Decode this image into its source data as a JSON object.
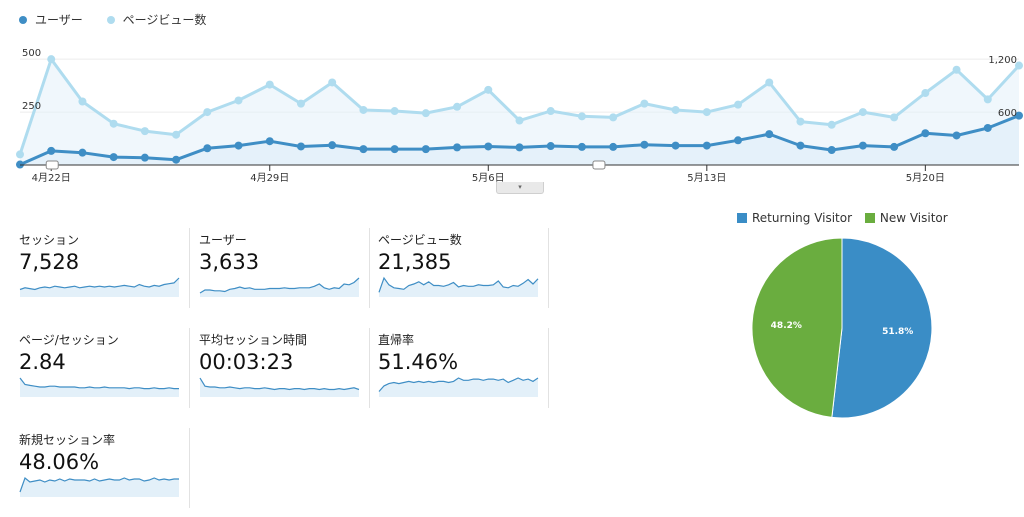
{
  "legend": [
    {
      "label": "ユーザー",
      "color": "#3f8ec5",
      "icon": "circle"
    },
    {
      "label": "ページビュー数",
      "color": "#afdcef",
      "icon": "circle"
    }
  ],
  "chart_data": {
    "type": "line",
    "series": [
      {
        "name": "ユーザー",
        "axis": "right",
        "color": "#3f8ec5",
        "values": [
          5,
          160,
          140,
          90,
          83,
          60,
          190,
          220,
          270,
          210,
          225,
          180,
          180,
          180,
          200,
          210,
          200,
          215,
          205,
          205,
          230,
          220,
          220,
          280,
          350,
          220,
          170,
          220,
          205,
          360,
          335,
          420,
          560
        ]
      },
      {
        "name": "ページビュー数",
        "axis": "left",
        "color": "#afdcef",
        "values": [
          50,
          500,
          300,
          195,
          160,
          143,
          250,
          305,
          380,
          290,
          390,
          260,
          255,
          245,
          275,
          355,
          210,
          255,
          230,
          225,
          290,
          260,
          250,
          285,
          390,
          205,
          190,
          250,
          225,
          340,
          450,
          310,
          470
        ]
      }
    ],
    "x_tick_labels": [
      "4月22日",
      "4月29日",
      "5月6日",
      "5月13日",
      "5月20日"
    ],
    "x_tick_indices": [
      1,
      8,
      15,
      22,
      29
    ],
    "y_left_ticks": [
      500,
      250
    ],
    "y_left_max": 600,
    "y_right_ticks": [
      1200,
      600
    ],
    "y_right_max": 1440,
    "area_fill": "#e3f0f9"
  },
  "collapse_handle": {
    "symbol": "▾"
  },
  "metrics": [
    {
      "label": "セッション",
      "value": "7,528",
      "spark": [
        8,
        10,
        9,
        8,
        10,
        11,
        10,
        12,
        11,
        10,
        11,
        12,
        10,
        11,
        12,
        11,
        12,
        11,
        12,
        11,
        12,
        13,
        12,
        11,
        14,
        12,
        11,
        13,
        12,
        14,
        15,
        16,
        22
      ]
    },
    {
      "label": "ユーザー",
      "value": "3,633",
      "spark": [
        4,
        8,
        8,
        7,
        7,
        6,
        9,
        10,
        12,
        10,
        11,
        9,
        9,
        9,
        10,
        10,
        10,
        11,
        10,
        10,
        11,
        11,
        11,
        13,
        16,
        11,
        9,
        11,
        10,
        16,
        15,
        18,
        24
      ]
    },
    {
      "label": "ページビュー数",
      "value": "21,385",
      "spark": [
        5,
        24,
        15,
        11,
        10,
        9,
        14,
        16,
        19,
        15,
        19,
        14,
        14,
        13,
        15,
        18,
        12,
        14,
        13,
        13,
        15,
        14,
        14,
        15,
        20,
        12,
        11,
        14,
        13,
        17,
        22,
        16,
        23
      ]
    },
    {
      "label": "ページ/セッション",
      "value": "2.84",
      "spark": [
        22,
        14,
        13,
        12,
        11,
        11,
        12,
        12,
        11,
        11,
        11,
        11,
        10,
        10,
        11,
        10,
        10,
        11,
        10,
        10,
        10,
        10,
        9,
        10,
        10,
        9,
        9,
        10,
        9,
        9,
        10,
        9,
        9
      ]
    },
    {
      "label": "平均セッション時間",
      "value": "00:03:23",
      "spark": [
        22,
        12,
        11,
        11,
        10,
        10,
        11,
        10,
        9,
        10,
        10,
        9,
        9,
        10,
        9,
        8,
        9,
        9,
        8,
        9,
        9,
        8,
        9,
        9,
        8,
        9,
        8,
        8,
        9,
        8,
        9,
        10,
        8
      ]
    },
    {
      "label": "直帰率",
      "value": "51.46%",
      "spark": [
        4,
        9,
        11,
        12,
        11,
        12,
        13,
        12,
        13,
        12,
        13,
        12,
        13,
        13,
        12,
        13,
        16,
        14,
        14,
        15,
        15,
        14,
        15,
        15,
        14,
        15,
        12,
        14,
        16,
        14,
        15,
        13,
        16
      ]
    },
    {
      "label": "新規セッション率",
      "value": "48.06%",
      "spark": [
        4,
        18,
        14,
        15,
        16,
        14,
        16,
        15,
        17,
        15,
        17,
        16,
        16,
        16,
        15,
        17,
        15,
        16,
        17,
        16,
        16,
        18,
        16,
        17,
        17,
        15,
        16,
        18,
        16,
        17,
        16,
        17,
        17
      ]
    }
  ],
  "spark_color": "#3f8ec5",
  "spark_fill": "#e3f0f9",
  "pie": {
    "type": "pie",
    "legend": [
      {
        "label": "Returning Visitor",
        "color": "#3a8dc6"
      },
      {
        "label": "New Visitor",
        "color": "#6aad3f"
      }
    ],
    "slices": [
      {
        "name": "Returning Visitor",
        "value": 51.8,
        "label": "51.8%",
        "color": "#3a8dc6"
      },
      {
        "name": "New Visitor",
        "value": 48.2,
        "label": "48.2%",
        "color": "#6aad3f"
      }
    ]
  }
}
